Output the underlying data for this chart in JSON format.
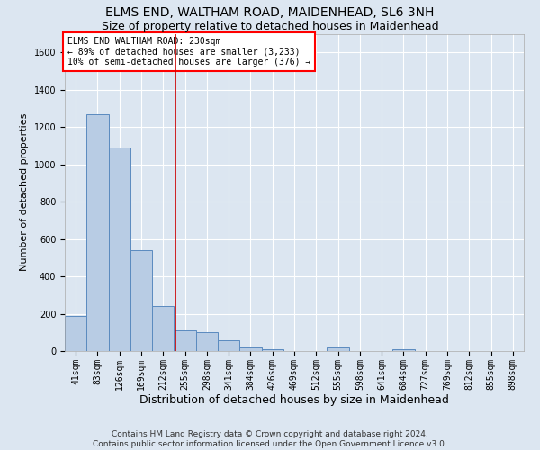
{
  "title": "ELMS END, WALTHAM ROAD, MAIDENHEAD, SL6 3NH",
  "subtitle": "Size of property relative to detached houses in Maidenhead",
  "xlabel": "Distribution of detached houses by size in Maidenhead",
  "ylabel": "Number of detached properties",
  "footer_line1": "Contains HM Land Registry data © Crown copyright and database right 2024.",
  "footer_line2": "Contains public sector information licensed under the Open Government Licence v3.0.",
  "annotation_title": "ELMS END WALTHAM ROAD: 230sqm",
  "annotation_line1": "← 89% of detached houses are smaller (3,233)",
  "annotation_line2": "10% of semi-detached houses are larger (376) →",
  "bar_color": "#b8cce4",
  "bar_edge_color": "#5a8abf",
  "vline_color": "#cc0000",
  "vline_x": 4.57,
  "ylim": [
    0,
    1700
  ],
  "yticks": [
    0,
    200,
    400,
    600,
    800,
    1000,
    1200,
    1400,
    1600
  ],
  "categories": [
    "41sqm",
    "83sqm",
    "126sqm",
    "169sqm",
    "212sqm",
    "255sqm",
    "298sqm",
    "341sqm",
    "384sqm",
    "426sqm",
    "469sqm",
    "512sqm",
    "555sqm",
    "598sqm",
    "641sqm",
    "684sqm",
    "727sqm",
    "769sqm",
    "812sqm",
    "855sqm",
    "898sqm"
  ],
  "values": [
    190,
    1270,
    1090,
    540,
    240,
    110,
    100,
    60,
    20,
    10,
    0,
    0,
    20,
    0,
    0,
    10,
    0,
    0,
    0,
    0,
    0
  ],
  "background_color": "#dce6f1",
  "plot_bg_color": "#dce6f1",
  "grid_color": "#ffffff",
  "title_fontsize": 10,
  "subtitle_fontsize": 9,
  "ylabel_fontsize": 8,
  "xlabel_fontsize": 9,
  "tick_fontsize": 7,
  "annotation_fontsize": 7,
  "footer_fontsize": 6.5
}
